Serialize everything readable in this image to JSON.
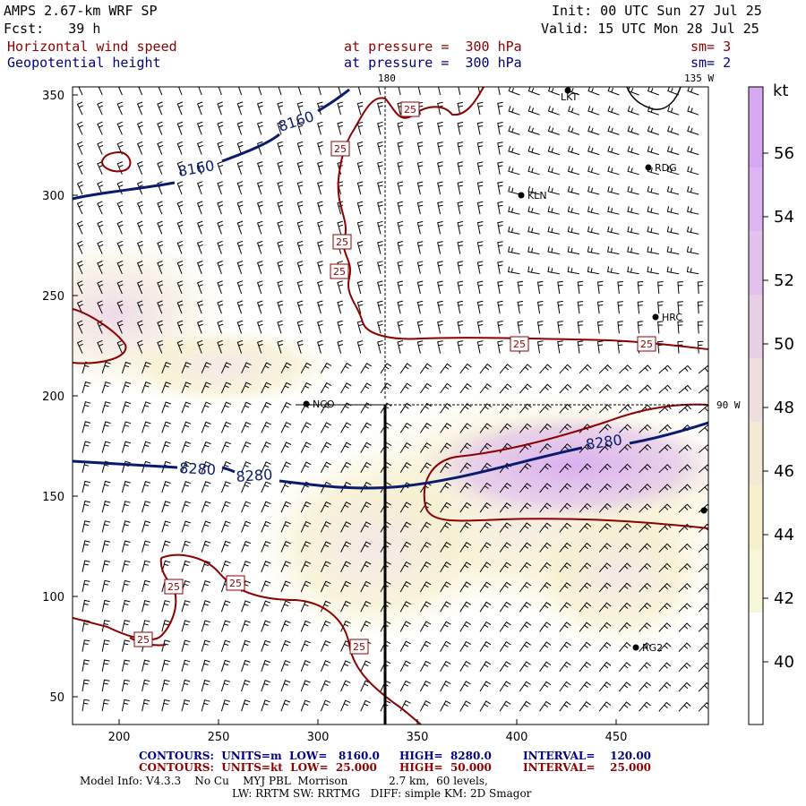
{
  "header": {
    "model": "AMPS 2.67-km WRF SP",
    "forecast": "Fcst:   39 h",
    "init": "Init: 00 UTC Sun 27 Jul 25",
    "valid": "Valid: 15 UTC Mon 28 Jul 25",
    "field1": "Horizontal wind speed",
    "field2": "Geopotential height",
    "pressure1": "at pressure =  300 hPa",
    "pressure2": "at pressure =  300 hPa",
    "sm1": "sm= 3",
    "sm2": "sm= 2"
  },
  "map": {
    "x_ticks": [
      "200",
      "250",
      "300",
      "350",
      "400",
      "450"
    ],
    "y_ticks": [
      "350",
      "300",
      "250",
      "200",
      "150",
      "100",
      "50"
    ],
    "lon_labels": [
      "180",
      "135 W",
      "90 W"
    ],
    "stations": [
      {
        "name": "LKT"
      },
      {
        "name": "RDG"
      },
      {
        "name": "KLN"
      },
      {
        "name": "HRC"
      },
      {
        "name": "NCO"
      },
      {
        "name": "RG2"
      }
    ],
    "height_labels": [
      "8160",
      "8160",
      "8280",
      "8280",
      "8280"
    ],
    "speed_labels": [
      "25"
    ],
    "colors": {
      "height_contour": "#0a1a6e",
      "speed_contour": "#8b0000",
      "barb": "#000000"
    }
  },
  "colorbar": {
    "unit": "kt",
    "ticks": [
      "56",
      "54",
      "52",
      "50",
      "48",
      "46",
      "44",
      "42",
      "40"
    ],
    "colors": [
      "#d6a8f0",
      "#dcb4f0",
      "#e2c2ec",
      "#e8d0e6",
      "#eedede",
      "#f3ead6",
      "#f6f1cc",
      "#f8f6d8",
      "#ffffff"
    ]
  },
  "footer": {
    "line1_a": "CONTOURS:  UNITS=m  LOW=   8160.0",
    "line1_b": "HIGH=  8280.0",
    "line1_c": "INTERVAL=    120.00",
    "line2_a": "CONTOURS:  UNITS=kt  LOW=  25.000",
    "line2_b": "HIGH=  50.000",
    "line2_c": "INTERVAL=    25.000",
    "line3": "Model Info: V4.3.3    No Cu    MYJ PBL  Morrison            2.7 km,  60 levels,",
    "line4": "LW: RRTM SW: RRTMG   DIFF: simple KM: 2D Smagor"
  }
}
